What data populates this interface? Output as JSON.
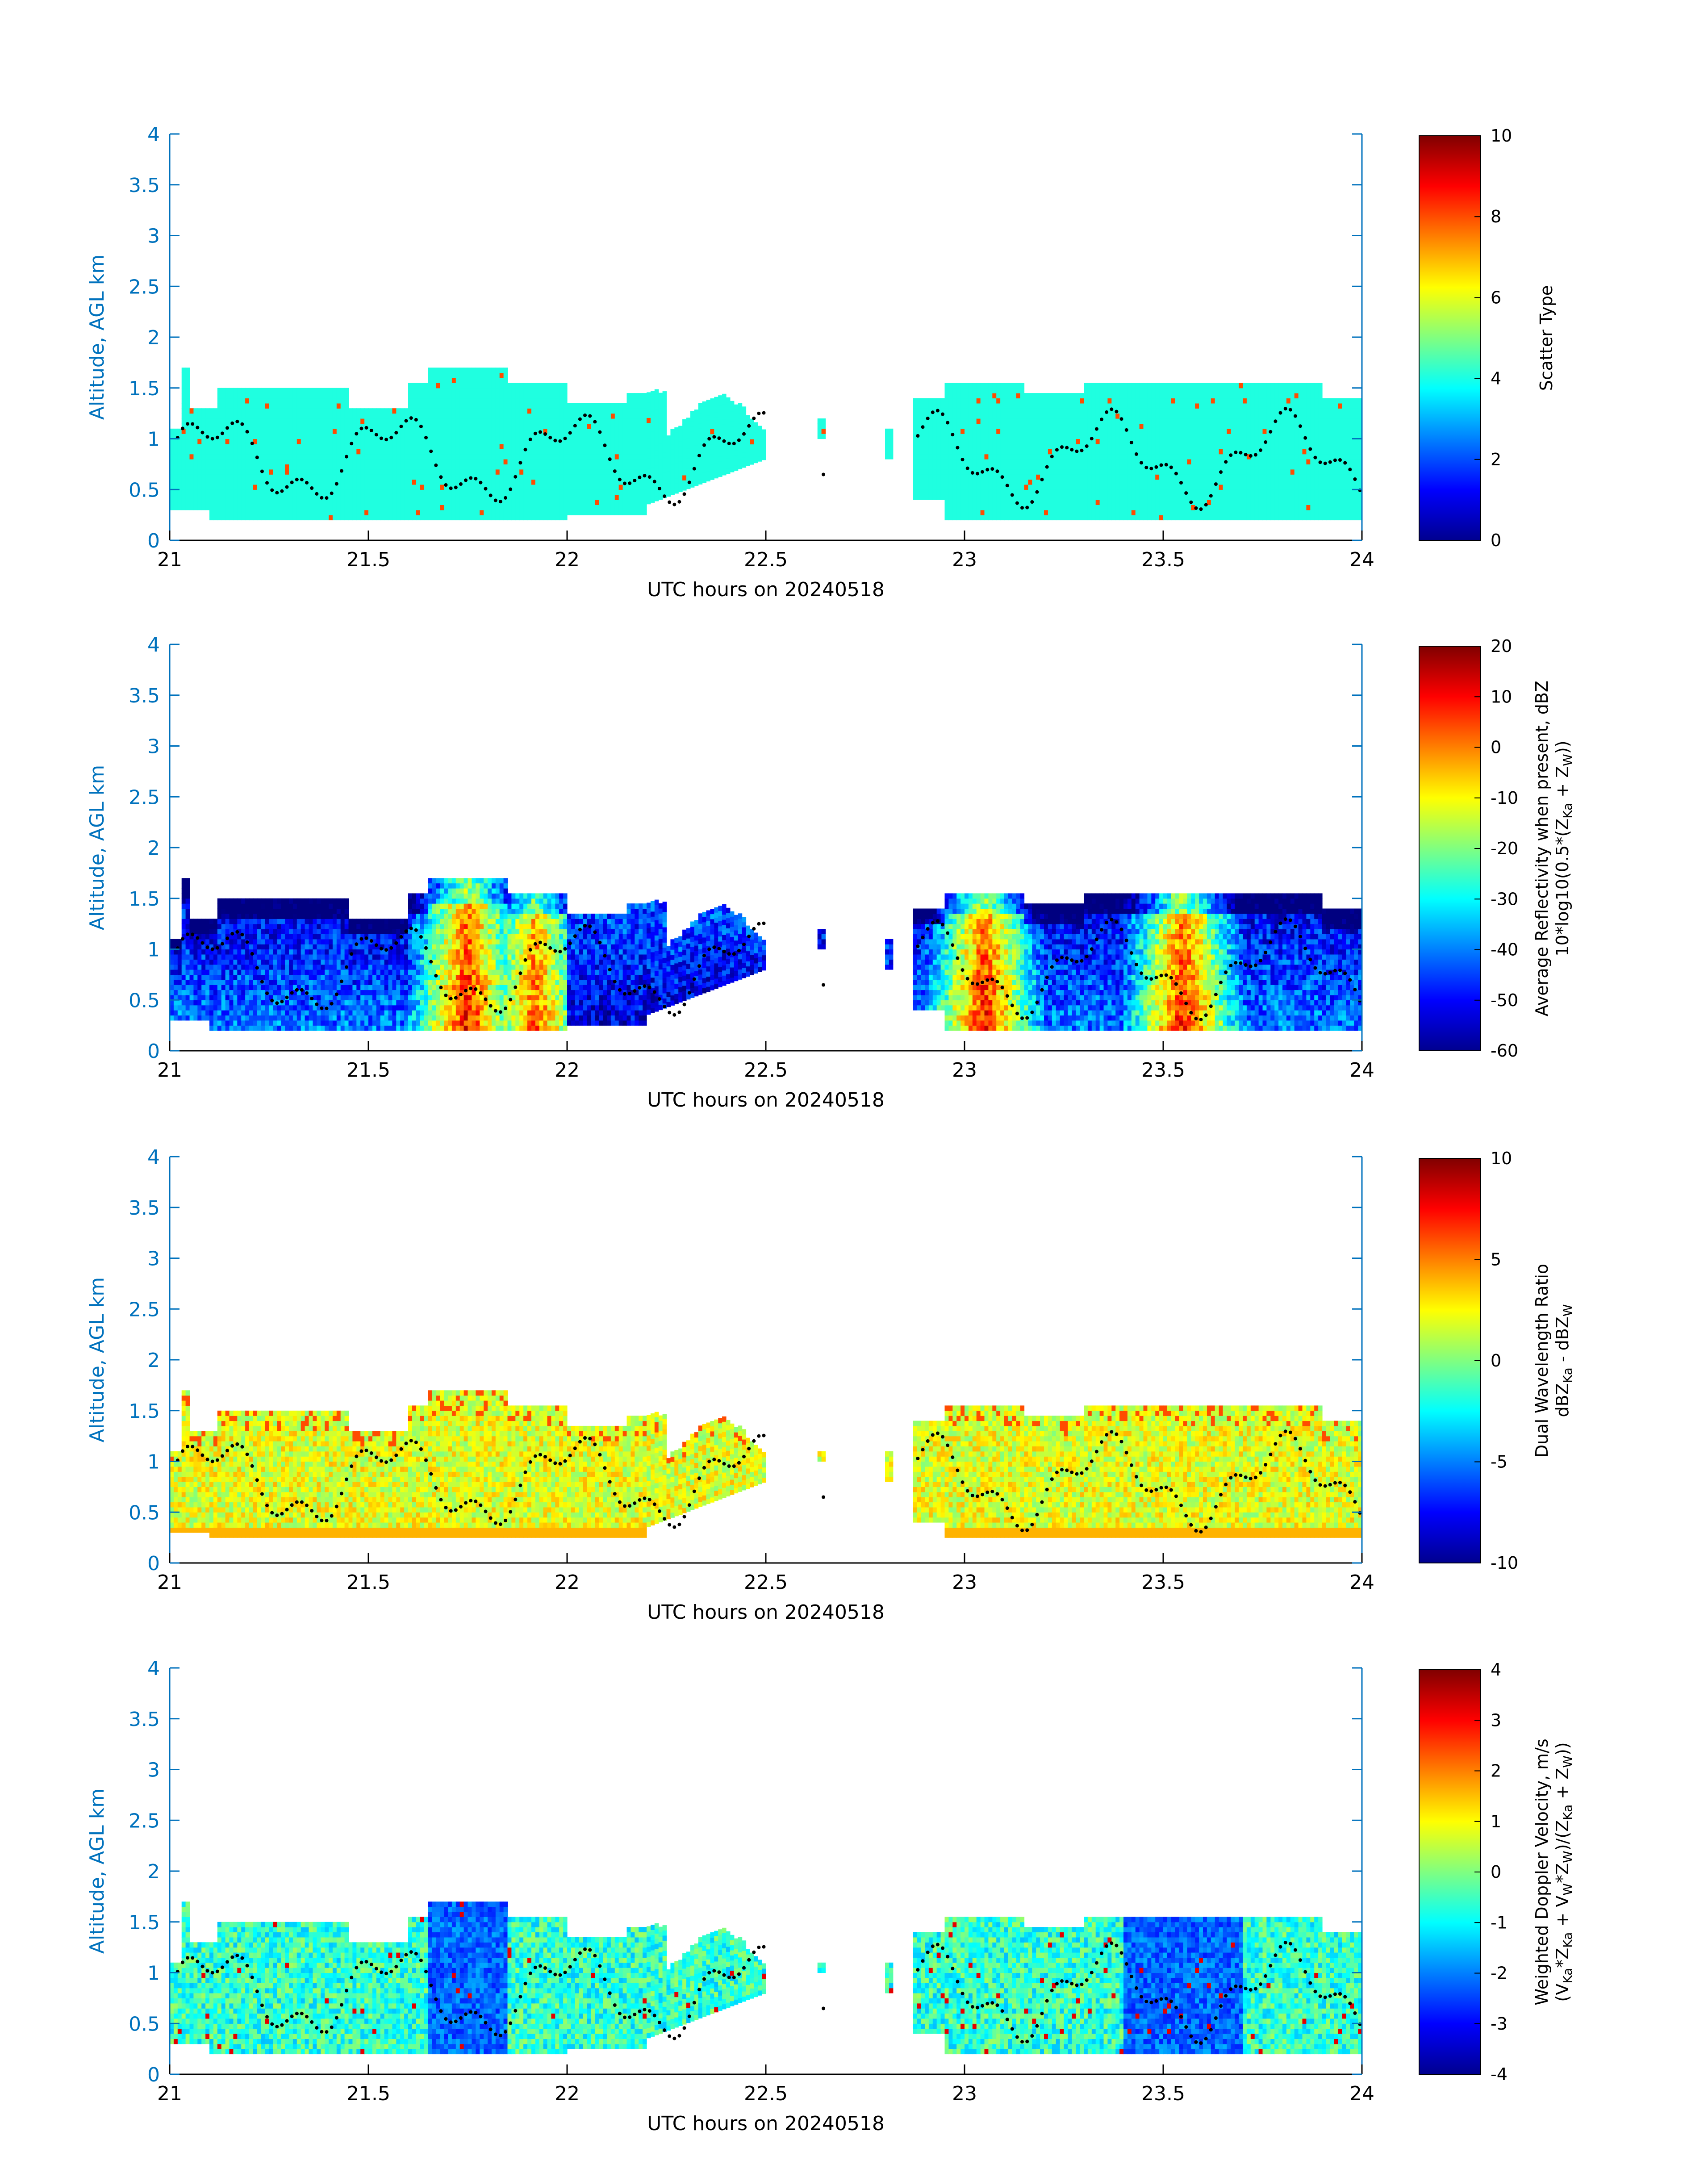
{
  "chart_data": [
    {
      "type": "heatmap",
      "variable": "scatter_type",
      "xlabel": "UTC hours on 20240518",
      "ylabel": "Altitude, AGL km",
      "xlim": [
        21,
        24
      ],
      "ylim": [
        0,
        4
      ],
      "xticks": [
        "21",
        "21.5",
        "22",
        "22.5",
        "23",
        "23.5",
        "24"
      ],
      "yticks": [
        "0",
        "0.5",
        "1",
        "1.5",
        "2",
        "2.5",
        "3",
        "3.5",
        "4"
      ],
      "colorbar": {
        "label_lines": [
          "Scatter Type"
        ],
        "clim": [
          0,
          10
        ],
        "ticks": [
          "0",
          "2",
          "4",
          "6",
          "8",
          "10"
        ]
      },
      "dominant_value": 4,
      "secondary_value": 8,
      "echo_segments": [
        {
          "x_start": 21.0,
          "x_end": 22.5,
          "base_km": 0.2,
          "top_km": 1.6
        },
        {
          "x_start": 22.63,
          "x_end": 22.65,
          "base_km": 1.0,
          "top_km": 1.2
        },
        {
          "x_start": 22.8,
          "x_end": 22.82,
          "base_km": 0.8,
          "top_km": 1.1
        },
        {
          "x_start": 22.87,
          "x_end": 24.0,
          "base_km": 0.2,
          "top_km": 1.6
        }
      ]
    },
    {
      "type": "heatmap",
      "variable": "average_reflectivity",
      "xlabel": "UTC hours on 20240518",
      "ylabel": "Altitude, AGL km",
      "xlim": [
        21,
        24
      ],
      "ylim": [
        0,
        4
      ],
      "xticks": [
        "21",
        "21.5",
        "22",
        "22.5",
        "23",
        "23.5",
        "24"
      ],
      "yticks": [
        "0",
        "0.5",
        "1",
        "1.5",
        "2",
        "2.5",
        "3",
        "3.5",
        "4"
      ],
      "colorbar": {
        "label_lines": [
          "Average Reflectivity when present, dBZ",
          "10*log10(0.5*(Z",
          "Ka",
          " + Z",
          "W",
          "))"
        ],
        "clim": [
          -60,
          20
        ],
        "ticks": [
          "-60",
          "-50",
          "-40",
          "-30",
          "-20",
          "-10",
          "0",
          "10",
          "20"
        ]
      },
      "echo_segments": [
        {
          "x_start": 21.0,
          "x_end": 22.5,
          "base_km": 0.2,
          "top_km": 1.6
        },
        {
          "x_start": 22.63,
          "x_end": 22.65,
          "base_km": 1.0,
          "top_km": 1.2
        },
        {
          "x_start": 22.8,
          "x_end": 22.82,
          "base_km": 0.8,
          "top_km": 1.1
        },
        {
          "x_start": 22.87,
          "x_end": 24.0,
          "base_km": 0.2,
          "top_km": 1.6
        }
      ],
      "cores": [
        {
          "x": 21.75,
          "value": 10
        },
        {
          "x": 21.92,
          "value": 5
        },
        {
          "x": 23.05,
          "value": 10
        },
        {
          "x": 23.55,
          "value": 10
        }
      ]
    },
    {
      "type": "heatmap",
      "variable": "dual_wavelength_ratio",
      "xlabel": "UTC hours on 20240518",
      "ylabel": "Altitude, AGL km",
      "xlim": [
        21,
        24
      ],
      "ylim": [
        0,
        4
      ],
      "xticks": [
        "21",
        "21.5",
        "22",
        "22.5",
        "23",
        "23.5",
        "24"
      ],
      "yticks": [
        "0",
        "0.5",
        "1",
        "1.5",
        "2",
        "2.5",
        "3",
        "3.5",
        "4"
      ],
      "colorbar": {
        "label_lines": [
          "Dual Wavelength Ratio",
          "dBZ",
          "Ka",
          " - dBZ",
          "W"
        ],
        "clim": [
          -10,
          10
        ],
        "ticks": [
          "-10",
          "-5",
          "0",
          "5",
          "10"
        ]
      },
      "echo_segments": [
        {
          "x_start": 21.0,
          "x_end": 22.5,
          "base_km": 0.25,
          "top_km": 1.6
        },
        {
          "x_start": 22.63,
          "x_end": 22.65,
          "base_km": 1.0,
          "top_km": 1.1
        },
        {
          "x_start": 22.8,
          "x_end": 22.82,
          "base_km": 0.8,
          "top_km": 1.1
        },
        {
          "x_start": 22.87,
          "x_end": 24.0,
          "base_km": 0.25,
          "top_km": 1.6
        }
      ]
    },
    {
      "type": "heatmap",
      "variable": "weighted_doppler_velocity",
      "xlabel": "UTC hours on 20240518",
      "ylabel": "Altitude, AGL km",
      "xlim": [
        21,
        24
      ],
      "ylim": [
        0,
        4
      ],
      "xticks": [
        "21",
        "21.5",
        "22",
        "22.5",
        "23",
        "23.5",
        "24"
      ],
      "yticks": [
        "0",
        "0.5",
        "1",
        "1.5",
        "2",
        "2.5",
        "3",
        "3.5",
        "4"
      ],
      "colorbar": {
        "label_lines": [
          "Weighted Doppler Velocity, m/s",
          "(V",
          "Ka",
          "*Z",
          "Ka",
          " + V",
          "W",
          "*Z",
          "W",
          ")/(Z",
          "Ka",
          " + Z",
          "W",
          "))"
        ],
        "clim": [
          -4,
          4
        ],
        "ticks": [
          "-4",
          "-3",
          "-2",
          "-1",
          "0",
          "1",
          "2",
          "3",
          "4"
        ]
      },
      "echo_segments": [
        {
          "x_start": 21.0,
          "x_end": 22.5,
          "base_km": 0.2,
          "top_km": 1.6
        },
        {
          "x_start": 22.63,
          "x_end": 22.65,
          "base_km": 1.0,
          "top_km": 1.1
        },
        {
          "x_start": 22.8,
          "x_end": 22.82,
          "base_km": 0.8,
          "top_km": 1.1
        },
        {
          "x_start": 22.87,
          "x_end": 24.0,
          "base_km": 0.2,
          "top_km": 1.6
        }
      ]
    }
  ],
  "colors": {
    "axis": "#0072BD",
    "dots": "#000000",
    "background": "#ffffff"
  }
}
